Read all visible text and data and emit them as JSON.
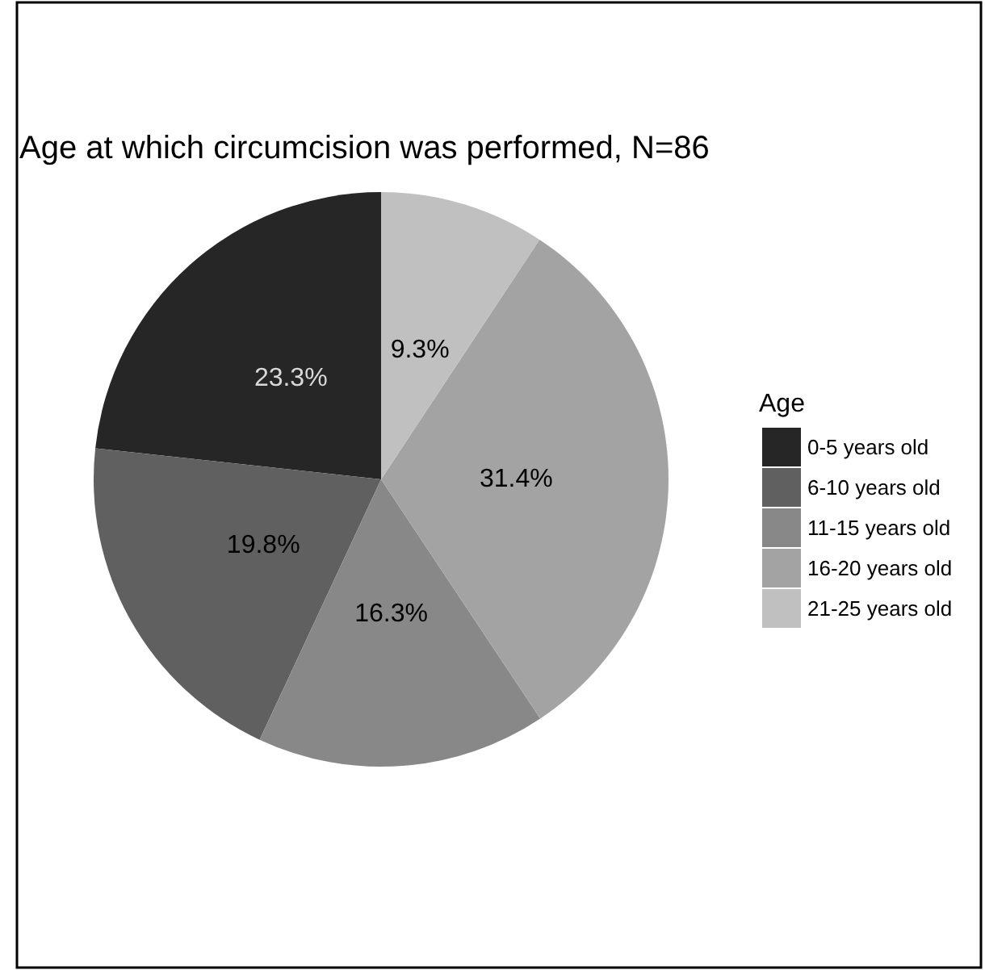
{
  "chart_data": {
    "type": "pie",
    "title": "Age at which circumcision was performed, N=86",
    "legend_title": "Age",
    "legend": "right",
    "categories": [
      "0-5 years old",
      "6-10 years old",
      "11-15 years old",
      "16-20 years old",
      "21-25 years old"
    ],
    "values": [
      23.3,
      19.8,
      16.3,
      31.4,
      9.3
    ],
    "colors": [
      "#262626",
      "#606060",
      "#888888",
      "#a3a3a3",
      "#c0c0c0"
    ],
    "value_labels": [
      "23.3%",
      "19.8%",
      "16.3%",
      "31.4%",
      "9.3%"
    ]
  }
}
